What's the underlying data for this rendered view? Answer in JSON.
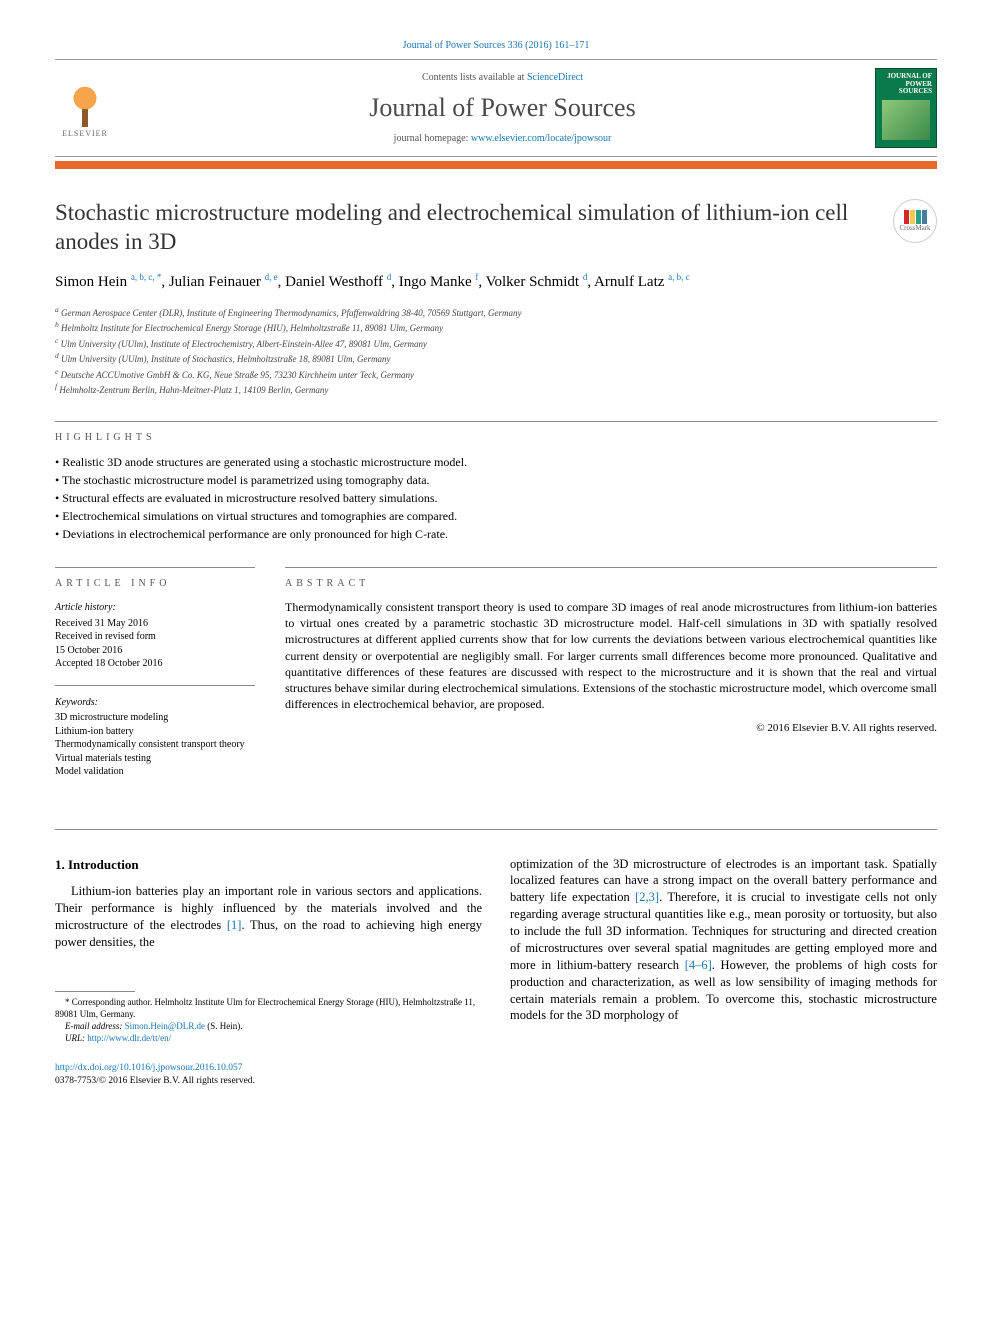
{
  "header": {
    "citation": "Journal of Power Sources 336 (2016) 161–171",
    "contents_prefix": "Contents lists available at ",
    "contents_link": "ScienceDirect",
    "journal_name": "Journal of Power Sources",
    "homepage_prefix": "journal homepage: ",
    "homepage_url": "www.elsevier.com/locate/jpowsour",
    "publisher_name": "ELSEVIER",
    "cover_title": "POWER SOURCES",
    "cover_pretitle": "JOURNAL OF"
  },
  "crossmark_label": "CrossMark",
  "title": "Stochastic microstructure modeling and electrochemical simulation of lithium-ion cell anodes in 3D",
  "authors": [
    {
      "name": "Simon Hein",
      "sup": "a, b, c, *"
    },
    {
      "name": "Julian Feinauer",
      "sup": "d, e"
    },
    {
      "name": "Daniel Westhoff",
      "sup": "d"
    },
    {
      "name": "Ingo Manke",
      "sup": "f"
    },
    {
      "name": "Volker Schmidt",
      "sup": "d"
    },
    {
      "name": "Arnulf Latz",
      "sup": "a, b, c"
    }
  ],
  "affiliations": [
    "a German Aerospace Center (DLR), Institute of Engineering Thermodynamics, Pfaffenwaldring 38-40, 70569 Stuttgart, Germany",
    "b Helmholtz Institute for Electrochemical Energy Storage (HIU), Helmholtzstraße 11, 89081 Ulm, Germany",
    "c Ulm University (UUlm), Institute of Electrochemistry, Albert-Einstein-Allee 47, 89081 Ulm, Germany",
    "d Ulm University (UUlm), Institute of Stochastics, Helmholtzstraße 18, 89081 Ulm, Germany",
    "e Deutsche ACCUmotive GmbH & Co. KG, Neue Straße 95, 73230 Kirchheim unter Teck, Germany",
    "f Helmholtz-Zentrum Berlin, Hahn-Meitner-Platz 1, 14109 Berlin, Germany"
  ],
  "labels": {
    "highlights": "HIGHLIGHTS",
    "article_info": "ARTICLE INFO",
    "abstract": "ABSTRACT"
  },
  "highlights": [
    "Realistic 3D anode structures are generated using a stochastic microstructure model.",
    "The stochastic microstructure model is parametrized using tomography data.",
    "Structural effects are evaluated in microstructure resolved battery simulations.",
    "Electrochemical simulations on virtual structures and tomographies are compared.",
    "Deviations in electrochemical performance are only pronounced for high C-rate."
  ],
  "article_info": {
    "history_label": "Article history:",
    "history": [
      "Received 31 May 2016",
      "Received in revised form",
      "15 October 2016",
      "Accepted 18 October 2016"
    ],
    "keywords_label": "Keywords:",
    "keywords": [
      "3D microstructure modeling",
      "Lithium-ion battery",
      "Thermodynamically consistent transport theory",
      "Virtual materials testing",
      "Model validation"
    ]
  },
  "abstract": "Thermodynamically consistent transport theory is used to compare 3D images of real anode microstructures from lithium-ion batteries to virtual ones created by a parametric stochastic 3D microstructure model. Half-cell simulations in 3D with spatially resolved microstructures at different applied currents show that for low currents the deviations between various electrochemical quantities like current density or overpotential are negligibly small. For larger currents small differences become more pronounced. Qualitative and quantitative differences of these features are discussed with respect to the microstructure and it is shown that the real and virtual structures behave similar during electrochemical simulations. Extensions of the stochastic microstructure model, which overcome small differences in electrochemical behavior, are proposed.",
  "copyright": "© 2016 Elsevier B.V. All rights reserved.",
  "body": {
    "heading": "1. Introduction",
    "col1_par": "Lithium-ion batteries play an important role in various sectors and applications. Their performance is highly influenced by the materials involved and the microstructure of the electrodes [1]. Thus, on the road to achieving high energy power densities, the",
    "col2_par": "optimization of the 3D microstructure of electrodes is an important task. Spatially localized features can have a strong impact on the overall battery performance and battery life expectation [2,3]. Therefore, it is crucial to investigate cells not only regarding average structural quantities like e.g., mean porosity or tortuosity, but also to include the full 3D information. Techniques for structuring and directed creation of microstructures over several spatial magnitudes are getting employed more and more in lithium-battery research [4–6]. However, the problems of high costs for production and characterization, as well as low sensibility of imaging methods for certain materials remain a problem. To overcome this, stochastic microstructure models for the 3D morphology of"
  },
  "footnote": {
    "corr": "* Corresponding author. Helmholtz Institute Ulm for Electrochemical Energy Storage (HIU), Helmholtzstraße 11, 89081 Ulm, Germany.",
    "email_label": "E-mail address: ",
    "email": "Simon.Hein@DLR.de",
    "email_who": " (S. Hein).",
    "url_label": "URL: ",
    "url": "http://www.dlr.de/tt/en/"
  },
  "doi": {
    "link": "http://dx.doi.org/10.1016/j.jpowsour.2016.10.057",
    "issn_line": "0378-7753/© 2016 Elsevier B.V. All rights reserved."
  },
  "refs": {
    "r1": "[1]",
    "r23": "[2,3]",
    "r46": "[4–6]"
  },
  "colors": {
    "link": "#1874b5",
    "accent_bar": "#e8682c",
    "cover_bg": "#0a7a4a"
  }
}
